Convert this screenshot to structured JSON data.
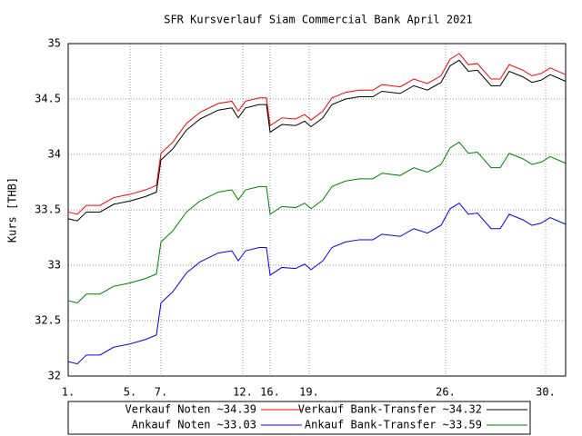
{
  "chart_data": {
    "type": "line",
    "title": "SFR Kursverlauf Siam Commercial Bank April 2021",
    "y_label": "Kurs [THB]",
    "x": [
      0,
      10,
      20,
      35,
      50,
      68,
      85,
      97,
      102,
      115,
      130,
      145,
      165,
      180,
      187,
      195,
      210,
      218,
      222,
      235,
      250,
      260,
      267,
      280,
      290,
      305,
      320,
      335,
      345,
      365,
      380,
      395,
      410,
      420,
      430,
      440,
      450,
      465,
      475,
      485,
      500,
      510,
      520,
      530,
      547
    ],
    "xlim": [
      0,
      547
    ],
    "xticks": [
      {
        "value": 0,
        "label": "1."
      },
      {
        "value": 68,
        "label": "5."
      },
      {
        "value": 102,
        "label": "7."
      },
      {
        "value": 192,
        "label": "12."
      },
      {
        "value": 222,
        "label": "16."
      },
      {
        "value": 265,
        "label": "19."
      },
      {
        "value": 415,
        "label": "26."
      },
      {
        "value": 525,
        "label": "30."
      }
    ],
    "ylim": [
      32,
      35
    ],
    "yticks": [
      32,
      32.5,
      33,
      33.5,
      34,
      34.5,
      35
    ],
    "grid": true,
    "legend": "bottom",
    "series": [
      {
        "name": "Verkauf Noten ~34.39",
        "color": "#ff0000",
        "values": [
          33.48,
          33.46,
          33.54,
          33.54,
          33.61,
          33.64,
          33.68,
          33.72,
          34.01,
          34.11,
          34.28,
          34.38,
          34.46,
          34.48,
          34.39,
          34.48,
          34.51,
          34.51,
          34.26,
          34.33,
          34.32,
          34.36,
          34.31,
          34.39,
          34.51,
          34.56,
          34.58,
          34.58,
          34.63,
          34.61,
          34.68,
          34.64,
          34.71,
          34.86,
          34.91,
          34.81,
          34.82,
          34.68,
          34.68,
          34.81,
          34.76,
          34.71,
          34.73,
          34.78,
          34.72
        ]
      },
      {
        "name": "Verkauf Bank-Transfer ~34.32",
        "color": "#000000",
        "values": [
          33.42,
          33.4,
          33.48,
          33.48,
          33.55,
          33.58,
          33.62,
          33.66,
          33.95,
          34.05,
          34.22,
          34.32,
          34.4,
          34.42,
          34.33,
          34.42,
          34.45,
          34.45,
          34.2,
          34.27,
          34.26,
          34.3,
          34.25,
          34.33,
          34.45,
          34.5,
          34.52,
          34.52,
          34.57,
          34.55,
          34.62,
          34.58,
          34.65,
          34.8,
          34.85,
          34.75,
          34.76,
          34.62,
          34.62,
          34.75,
          34.7,
          34.65,
          34.67,
          34.72,
          34.66
        ]
      },
      {
        "name": "Ankauf Noten ~33.03",
        "color": "#0000ff",
        "values": [
          32.13,
          32.11,
          32.19,
          32.19,
          32.26,
          32.29,
          32.33,
          32.37,
          32.66,
          32.76,
          32.93,
          33.03,
          33.11,
          33.13,
          33.04,
          33.13,
          33.16,
          33.16,
          32.91,
          32.98,
          32.97,
          33.01,
          32.96,
          33.04,
          33.16,
          33.21,
          33.23,
          33.23,
          33.28,
          33.26,
          33.33,
          33.29,
          33.36,
          33.51,
          33.56,
          33.46,
          33.47,
          33.33,
          33.33,
          33.46,
          33.41,
          33.36,
          33.38,
          33.43,
          33.37
        ]
      },
      {
        "name": "Ankauf Bank-Transfer ~33.59",
        "color": "#008000",
        "values": [
          32.68,
          32.66,
          32.74,
          32.74,
          32.81,
          32.84,
          32.88,
          32.92,
          33.21,
          33.31,
          33.48,
          33.58,
          33.66,
          33.68,
          33.59,
          33.68,
          33.71,
          33.71,
          33.46,
          33.53,
          33.52,
          33.56,
          33.51,
          33.59,
          33.71,
          33.76,
          33.78,
          33.78,
          33.83,
          33.81,
          33.88,
          33.84,
          33.91,
          34.06,
          34.11,
          34.01,
          34.02,
          33.88,
          33.88,
          34.01,
          33.96,
          33.91,
          33.93,
          33.98,
          33.92
        ]
      }
    ]
  }
}
